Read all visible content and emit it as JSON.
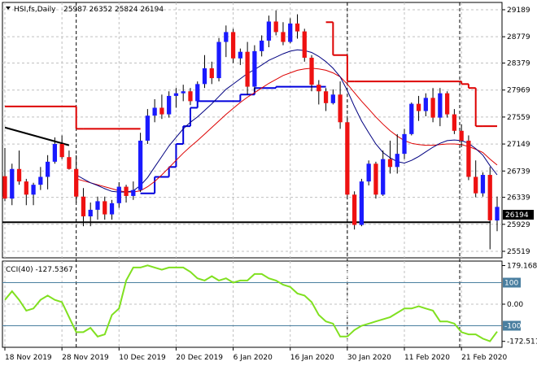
{
  "chart_data": {
    "type": "candlestick",
    "symbol_label": "HSI,fs,Daily",
    "ohlc_header": "25987 26352 25824 26194",
    "last_price_label": "26194",
    "colors": {
      "background": "#ffffff",
      "bull_body": "#1a1aff",
      "bear_body": "#ee1111",
      "wick": "#000000",
      "ma_fast": "#000080",
      "ma_slow": "#dd0000",
      "stop_up": "#0000dd",
      "stop_down": "#dd0000",
      "cci_line": "#80e020",
      "level_line": "#4a7fa0",
      "grid": "#c0c0c0",
      "support": "#000000",
      "price_tag_bg": "#000000",
      "price_tag_fg": "#ffffff"
    },
    "price_axis": {
      "min": 25420,
      "max": 29300,
      "ticks": [
        "29189",
        "28779",
        "28379",
        "27969",
        "27559",
        "27149",
        "26739",
        "26339",
        "25929",
        "25519"
      ]
    },
    "x_axis": {
      "labels": [
        {
          "text": "18 Nov 2019",
          "index": 0
        },
        {
          "text": "28 Nov 2019",
          "index": 8
        },
        {
          "text": "10 Dec 2019",
          "index": 16
        },
        {
          "text": "20 Dec 2019",
          "index": 24
        },
        {
          "text": "6 Jan 2020",
          "index": 32
        },
        {
          "text": "16 Jan 2020",
          "index": 40
        },
        {
          "text": "30 Jan 2020",
          "index": 48
        },
        {
          "text": "11 Feb 2020",
          "index": 56
        },
        {
          "text": "21 Feb 2020",
          "index": 64
        }
      ],
      "count": 70,
      "vertical_markers": [
        10,
        48,
        70
      ]
    },
    "candles": [
      [
        26660,
        27090,
        26280,
        26320
      ],
      [
        26320,
        26850,
        26220,
        26770
      ],
      [
        26770,
        27050,
        26530,
        26580
      ],
      [
        26580,
        26620,
        26220,
        26380
      ],
      [
        26380,
        26560,
        26220,
        26530
      ],
      [
        26530,
        26800,
        26450,
        26650
      ],
      [
        26650,
        26980,
        26460,
        26880
      ],
      [
        26880,
        27250,
        26850,
        27150
      ],
      [
        27150,
        27280,
        26920,
        26950
      ],
      [
        26950,
        27050,
        26760,
        26770
      ],
      [
        26770,
        26980,
        26260,
        26350
      ],
      [
        26350,
        26480,
        25900,
        26050
      ],
      [
        26050,
        26260,
        25900,
        26150
      ],
      [
        26150,
        26350,
        26000,
        26280
      ],
      [
        26280,
        26350,
        26000,
        26080
      ],
      [
        26080,
        26300,
        26000,
        26250
      ],
      [
        26250,
        26570,
        26180,
        26500
      ],
      [
        26500,
        26530,
        26260,
        26360
      ],
      [
        26360,
        26580,
        26300,
        26450
      ],
      [
        26450,
        27320,
        26420,
        27200
      ],
      [
        27200,
        27680,
        27150,
        27580
      ],
      [
        27580,
        27830,
        27480,
        27700
      ],
      [
        27700,
        27900,
        27530,
        27600
      ],
      [
        27600,
        27950,
        27550,
        27880
      ],
      [
        27880,
        28000,
        27700,
        27920
      ],
      [
        27920,
        28050,
        27800,
        27950
      ],
      [
        27950,
        28000,
        27740,
        27800
      ],
      [
        27800,
        28100,
        27800,
        28060
      ],
      [
        28060,
        28500,
        28000,
        28300
      ],
      [
        28300,
        28400,
        28060,
        28150
      ],
      [
        28150,
        28760,
        28100,
        28700
      ],
      [
        28700,
        28950,
        28470,
        28850
      ],
      [
        28850,
        28900,
        28380,
        28450
      ],
      [
        28450,
        28600,
        28350,
        28550
      ],
      [
        28550,
        28700,
        27900,
        28020
      ],
      [
        28020,
        28650,
        27940,
        28560
      ],
      [
        28560,
        28800,
        28480,
        28720
      ],
      [
        28720,
        29100,
        28620,
        29010
      ],
      [
        29010,
        29180,
        28800,
        28850
      ],
      [
        28850,
        29000,
        28650,
        28700
      ],
      [
        28700,
        29060,
        28680,
        28980
      ],
      [
        28980,
        29120,
        28750,
        28860
      ],
      [
        28860,
        28900,
        28400,
        28460
      ],
      [
        28460,
        28500,
        27950,
        28050
      ],
      [
        28050,
        28120,
        27750,
        27950
      ],
      [
        27950,
        28000,
        27650,
        27770
      ],
      [
        27770,
        27980,
        27750,
        27900
      ],
      [
        27900,
        28100,
        27380,
        27480
      ],
      [
        27480,
        27540,
        26360,
        26380
      ],
      [
        26380,
        26430,
        25850,
        25920
      ],
      [
        25920,
        26620,
        25900,
        26580
      ],
      [
        26580,
        26900,
        26520,
        26850
      ],
      [
        26850,
        26880,
        26320,
        26380
      ],
      [
        26380,
        27050,
        26360,
        26920
      ],
      [
        26920,
        27200,
        26700,
        26800
      ],
      [
        26800,
        27300,
        26700,
        27000
      ],
      [
        27000,
        27380,
        26920,
        27300
      ],
      [
        27300,
        27780,
        27280,
        27760
      ],
      [
        27760,
        27880,
        27500,
        27650
      ],
      [
        27650,
        27920,
        27570,
        27850
      ],
      [
        27850,
        28000,
        27480,
        27550
      ],
      [
        27550,
        28000,
        27420,
        27920
      ],
      [
        27920,
        27950,
        27550,
        27600
      ],
      [
        27600,
        27680,
        27300,
        27350
      ],
      [
        27350,
        27450,
        27100,
        27200
      ],
      [
        27200,
        27280,
        26600,
        26650
      ],
      [
        26650,
        26900,
        26340,
        26400
      ],
      [
        26400,
        26720,
        26350,
        26680
      ],
      [
        26680,
        26800,
        25550,
        25990
      ],
      [
        25987,
        26352,
        25824,
        26194
      ]
    ],
    "ma_fast": [
      null,
      null,
      null,
      null,
      null,
      null,
      null,
      null,
      null,
      null,
      26680,
      26620,
      26560,
      26520,
      26470,
      26430,
      26420,
      26420,
      26440,
      26520,
      26640,
      26800,
      26960,
      27120,
      27250,
      27380,
      27480,
      27560,
      27660,
      27760,
      27870,
      27980,
      28060,
      28140,
      28220,
      28280,
      28350,
      28420,
      28470,
      28520,
      28560,
      28580,
      28570,
      28540,
      28480,
      28400,
      28300,
      28170,
      27960,
      27720,
      27500,
      27320,
      27150,
      27020,
      26940,
      26880,
      26860,
      26900,
      26960,
      27030,
      27100,
      27160,
      27200,
      27210,
      27200,
      27160,
      27080,
      26980,
      26820,
      26680
    ],
    "ma_slow": [
      null,
      null,
      null,
      null,
      null,
      null,
      null,
      null,
      null,
      null,
      26620,
      26590,
      26560,
      26530,
      26500,
      26470,
      26440,
      26420,
      26420,
      26440,
      26500,
      26580,
      26680,
      26790,
      26900,
      27010,
      27110,
      27200,
      27300,
      27400,
      27500,
      27600,
      27690,
      27780,
      27860,
      27930,
      28000,
      28070,
      28130,
      28190,
      28230,
      28270,
      28290,
      28300,
      28290,
      28270,
      28230,
      28170,
      28060,
      27930,
      27800,
      27680,
      27560,
      27450,
      27350,
      27270,
      27200,
      27160,
      27140,
      27130,
      27130,
      27140,
      27150,
      27150,
      27140,
      27110,
      27070,
      27020,
      26920,
      26830
    ],
    "trailing_stop": [
      {
        "from": 0,
        "to": 10,
        "value": 27720,
        "side": "down"
      },
      {
        "from": 10,
        "to": 11,
        "value": 27380,
        "side": "down"
      },
      {
        "from": 11,
        "to": 19,
        "value": 27380,
        "side": "down"
      },
      {
        "from": 19,
        "to": 21,
        "value": 26400,
        "side": "up"
      },
      {
        "from": 21,
        "to": 23,
        "value": 26650,
        "side": "up"
      },
      {
        "from": 23,
        "to": 24,
        "value": 26800,
        "side": "up"
      },
      {
        "from": 24,
        "to": 25,
        "value": 27150,
        "side": "up"
      },
      {
        "from": 25,
        "to": 26,
        "value": 27420,
        "side": "up"
      },
      {
        "from": 26,
        "to": 27,
        "value": 27700,
        "side": "up"
      },
      {
        "from": 27,
        "to": 33,
        "value": 27800,
        "side": "up"
      },
      {
        "from": 33,
        "to": 35,
        "value": 27900,
        "side": "up"
      },
      {
        "from": 35,
        "to": 38,
        "value": 28000,
        "side": "up"
      },
      {
        "from": 38,
        "to": 45,
        "value": 28020,
        "side": "up"
      },
      {
        "from": 45,
        "to": 46,
        "value": 29000,
        "side": "down"
      },
      {
        "from": 46,
        "to": 48,
        "value": 28500,
        "side": "down"
      },
      {
        "from": 48,
        "to": 49,
        "value": 28100,
        "side": "down"
      },
      {
        "from": 49,
        "to": 64,
        "value": 28100,
        "side": "down"
      },
      {
        "from": 64,
        "to": 65,
        "value": 28060,
        "side": "down"
      },
      {
        "from": 65,
        "to": 66,
        "value": 28000,
        "side": "down"
      },
      {
        "from": 66,
        "to": 67,
        "value": 27420,
        "side": "down"
      },
      {
        "from": 67,
        "to": 69,
        "value": 27420,
        "side": "down"
      }
    ],
    "trendline": {
      "from": 0,
      "to": 9,
      "start": 27400,
      "end": 27130
    },
    "support_level": 25960,
    "cci": {
      "label": "CCI(40) -127.5367",
      "axis_min": -200,
      "axis_max": 200,
      "ticks": [
        "179.1686",
        "100",
        "0.00",
        "-100",
        "-172.511"
      ],
      "levels": [
        100,
        -100
      ],
      "values": [
        20,
        60,
        20,
        -30,
        -20,
        20,
        40,
        20,
        10,
        -60,
        -130,
        -130,
        -110,
        -150,
        -140,
        -50,
        -20,
        110,
        170,
        170,
        180,
        170,
        160,
        170,
        170,
        170,
        150,
        120,
        110,
        130,
        110,
        120,
        100,
        110,
        110,
        140,
        140,
        120,
        110,
        90,
        80,
        50,
        40,
        10,
        -50,
        -80,
        -90,
        -150,
        -150,
        -120,
        -100,
        -90,
        -80,
        -70,
        -60,
        -40,
        -20,
        -20,
        -10,
        -20,
        -30,
        -80,
        -80,
        -90,
        -130,
        -140,
        -140,
        -160,
        -172,
        -127
      ]
    }
  }
}
